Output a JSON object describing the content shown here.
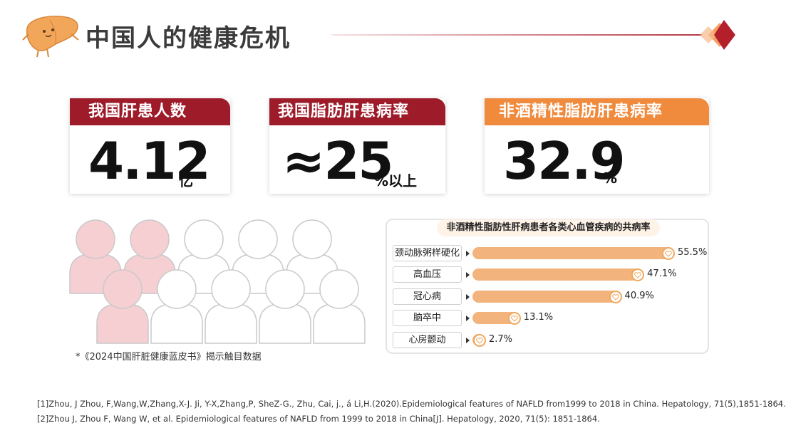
{
  "header": {
    "title": "中国人的健康危机"
  },
  "stats": [
    {
      "label": "我国肝患人数",
      "value": "4.12",
      "unit": "亿",
      "header_color": "#9e1c2a"
    },
    {
      "label": "我国脂肪肝患病率",
      "value": "≈25",
      "unit": "%以上",
      "header_color": "#9e1c2a"
    },
    {
      "label": "非酒精性脂肪肝患病率",
      "value": "32.9",
      "unit": "%",
      "header_color": "#f08a3c"
    }
  ],
  "people": {
    "highlighted": 3,
    "total": 10,
    "highlight_color": "#f6cfd3"
  },
  "source_note": "*《2024中国肝脏健康蓝皮书》揭示触目数据",
  "chart_data": {
    "type": "bar",
    "title": "非酒精性脂肪性肝病患者各类心血管疾病的共病率",
    "categories": [
      "颈动脉粥样硬化",
      "高血压",
      "冠心病",
      "脑卒中",
      "心房颤动"
    ],
    "values": [
      55.5,
      47.1,
      40.9,
      13.1,
      2.7
    ],
    "value_labels": [
      "55.5%",
      "47.1%",
      "40.9%",
      "13.1%",
      "2.7%"
    ],
    "xlim": [
      0,
      55.5
    ],
    "bar_color": "#f2b37c"
  },
  "references": [
    "[1]Zhou, J Zhou, F,Wang,W,Zhang,X-J. Ji, Y-X,Zhang,P, SheZ-G., Zhu,  Cai, j., á Li,H.(2020).Epidemiological features of NAFLD from1999 to 2018 in China. Hepatology, 71(5),1851-1864.",
    "[2]Zhou J, Zhou F, Wang W, et al. Epidemiological features of NAFLD from 1999 to 2018 in China[J]. Hepatology, 2020, 71(5): 1851-1864."
  ]
}
